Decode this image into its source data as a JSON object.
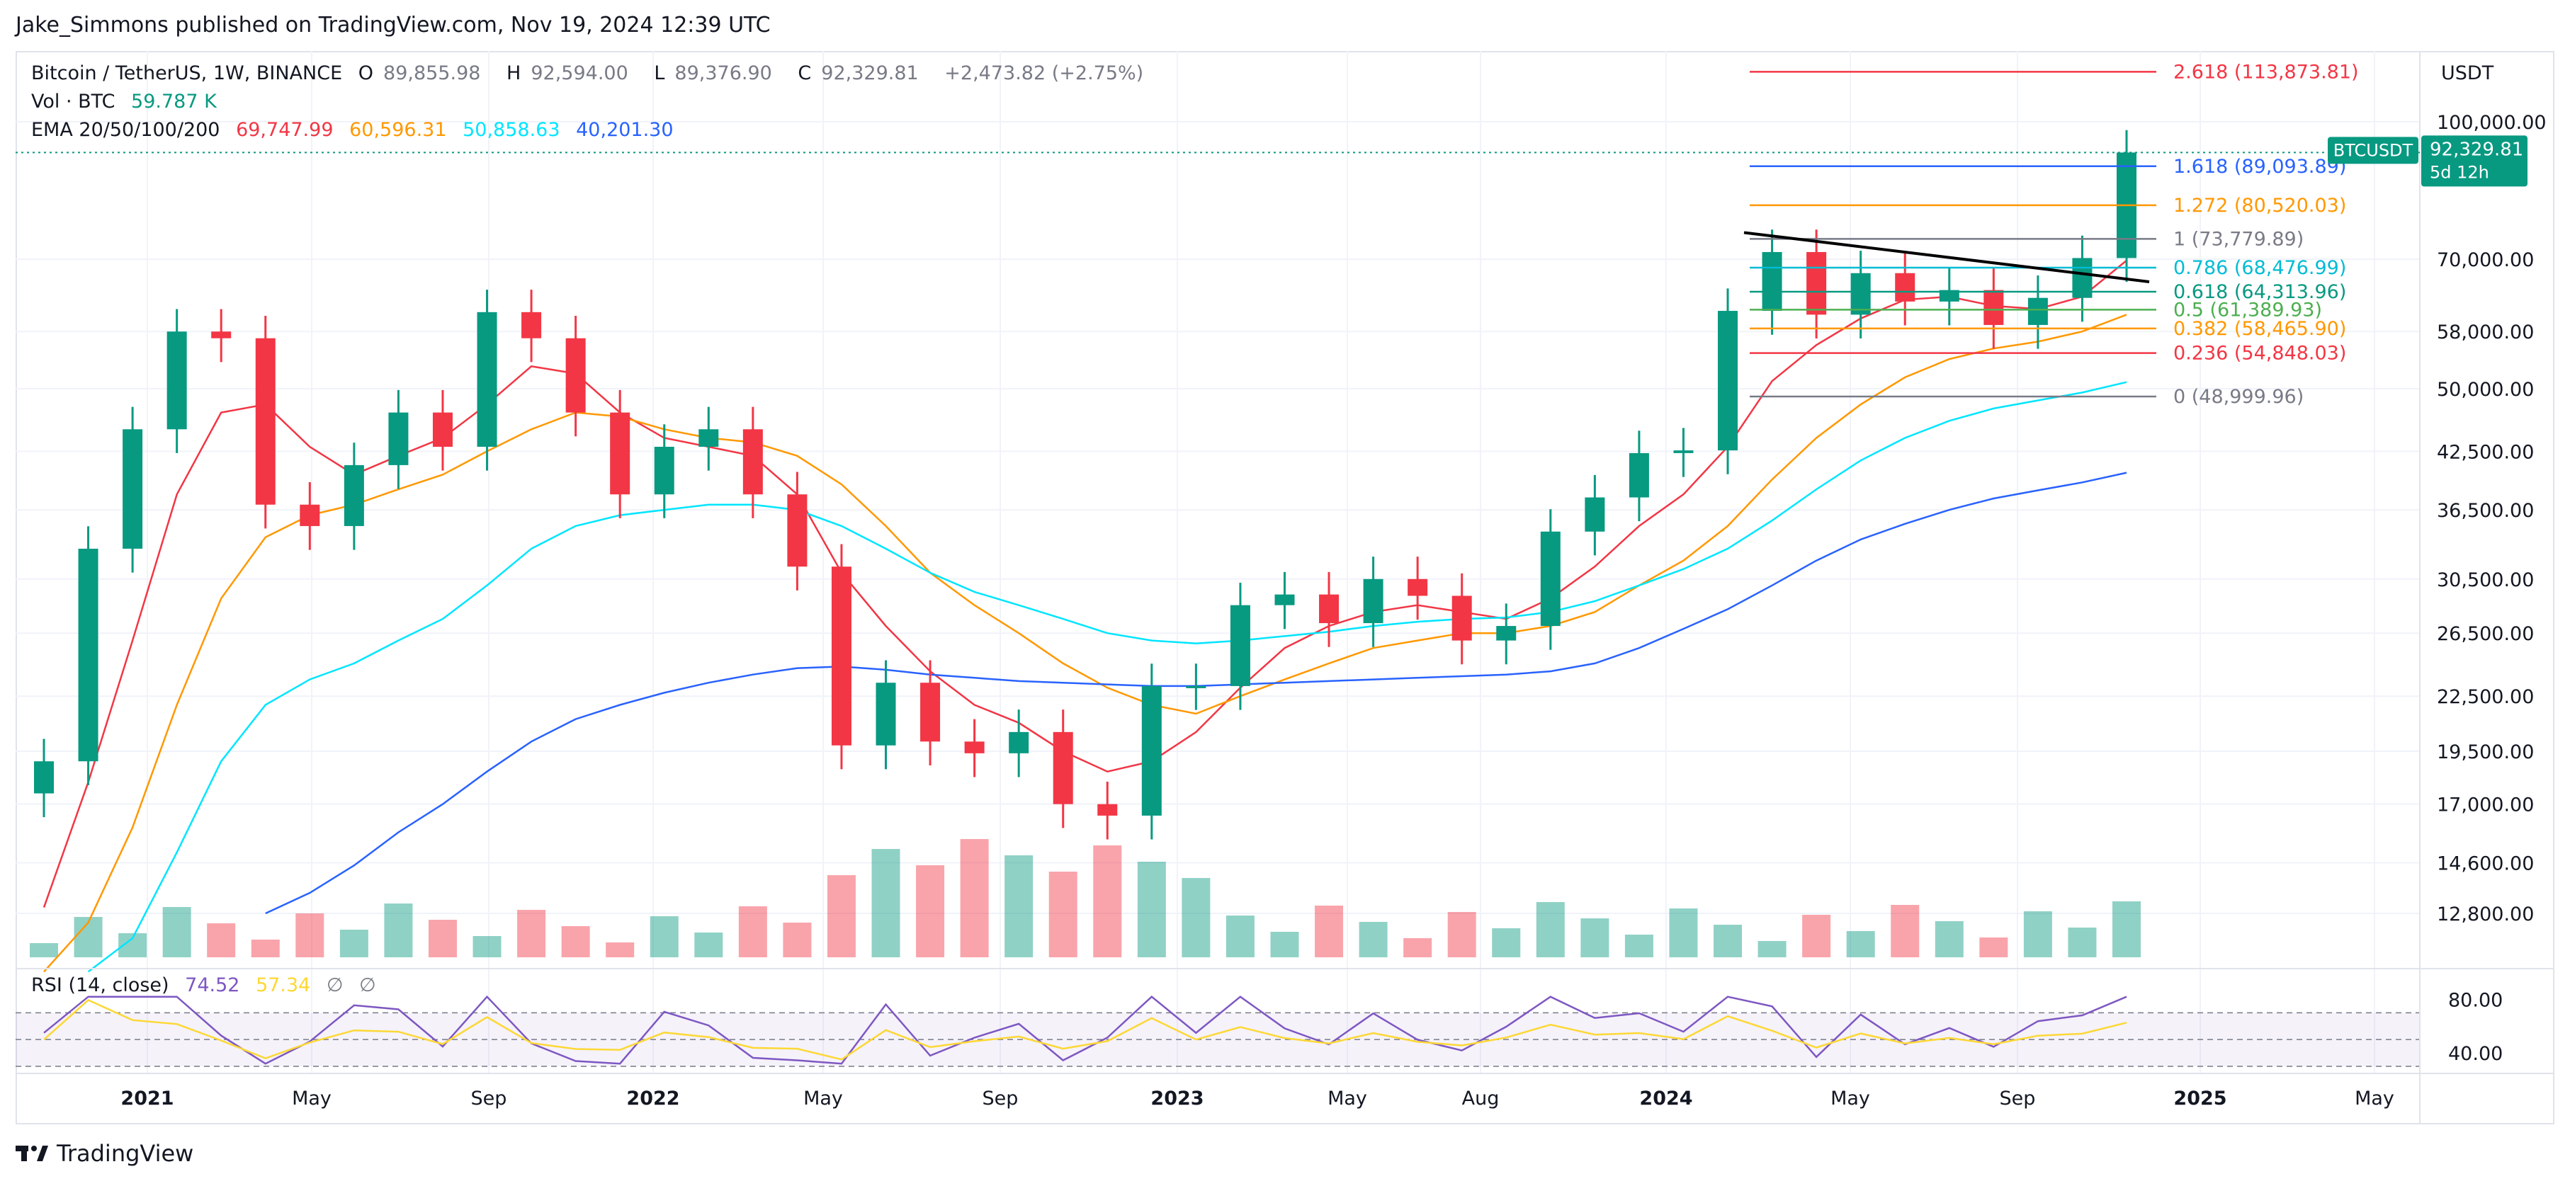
{
  "author_line": "Jake_Simmons published on TradingView.com, Nov 19, 2024 12:39 UTC",
  "footer": {
    "brand": "TradingView",
    "logo_icon": "tradingview-logo-icon"
  },
  "legend": {
    "symbol": "Bitcoin / TetherUS, 1W, BINANCE",
    "open_label": "O",
    "open": "89,855.98",
    "high_label": "H",
    "high": "92,594.00",
    "low_label": "L",
    "low": "89,376.90",
    "close_label": "C",
    "close": "92,329.81",
    "change": "+2,473.82 (+2.75%)",
    "vol_label": "Vol · BTC",
    "vol_value": "59.787 K",
    "ema_label": "EMA 20/50/100/200",
    "ema_values": [
      "69,747.99",
      "60,596.31",
      "50,858.63",
      "40,201.30"
    ],
    "ema_colors": [
      "#f23645",
      "#ff9800",
      "#00e5ff",
      "#2962ff"
    ],
    "rsi_label": "RSI (14, close)",
    "rsi_value": "74.52",
    "rsi_ma": "57.34",
    "rsi_na1": "∅",
    "rsi_na2": "∅"
  },
  "price_axis": {
    "currency": "USDT",
    "ticks": [
      "100,000.00",
      "70,000.00",
      "58,000.00",
      "50,000.00",
      "42,500.00",
      "36,500.00",
      "30,500.00",
      "26,500.00",
      "22,500.00",
      "19,500.00",
      "17,000.00",
      "14,600.00",
      "12,800.00"
    ],
    "last_price_symbol": "BTCUSDT",
    "last_price": "92,329.81",
    "countdown": "5d 12h"
  },
  "rsi_axis": {
    "ticks": [
      "80.00",
      "40.00"
    ]
  },
  "time_axis": {
    "ticks": [
      "2021",
      "May",
      "Sep",
      "2022",
      "May",
      "Sep",
      "2023",
      "May",
      "Aug",
      "2024",
      "May",
      "Sep",
      "2025",
      "May"
    ]
  },
  "fibonacci": [
    {
      "label": "2.618 (113,873.81)",
      "color": "#f23645"
    },
    {
      "label": "1.618 (89,093.89)",
      "color": "#2962ff"
    },
    {
      "label": "1.272 (80,520.03)",
      "color": "#ff9800"
    },
    {
      "label": "1 (73,779.89)",
      "color": "#787b86"
    },
    {
      "label": "0.786 (68,476.99)",
      "color": "#00bcd4"
    },
    {
      "label": "0.618 (64,313.96)",
      "color": "#089981"
    },
    {
      "label": "0.5 (61,389.93)",
      "color": "#4caf50"
    },
    {
      "label": "0.382 (58,465.90)",
      "color": "#ff9800"
    },
    {
      "label": "0.236 (54,848.03)",
      "color": "#f23645"
    },
    {
      "label": "0 (48,999.96)",
      "color": "#787b86"
    }
  ],
  "chart_data": {
    "type": "candlestick",
    "title": "Bitcoin / TetherUS, 1W, BINANCE",
    "y_scale": "log",
    "ylim": [
      11000,
      125000
    ],
    "series": [
      {
        "name": "BTCUSDT",
        "dates": [
          "2020-12",
          "2021-01",
          "2021-02",
          "2021-03",
          "2021-04",
          "2021-05",
          "2021-06",
          "2021-07",
          "2021-08",
          "2021-09",
          "2021-10",
          "2021-11",
          "2021-12",
          "2022-01",
          "2022-02",
          "2022-03",
          "2022-04",
          "2022-05",
          "2022-06",
          "2022-07",
          "2022-08",
          "2022-09",
          "2022-10",
          "2022-11",
          "2022-12",
          "2023-01",
          "2023-02",
          "2023-03",
          "2023-04",
          "2023-05",
          "2023-06",
          "2023-07",
          "2023-08",
          "2023-09",
          "2023-10",
          "2023-11",
          "2023-12",
          "2024-01",
          "2024-02",
          "2024-03",
          "2024-04",
          "2024-05",
          "2024-06",
          "2024-07",
          "2024-08",
          "2024-09",
          "2024-10",
          "2024-11"
        ],
        "close": [
          19000,
          33000,
          45000,
          58000,
          57000,
          37000,
          35000,
          41000,
          47000,
          43000,
          61000,
          57000,
          47000,
          38000,
          43000,
          45000,
          38000,
          31500,
          19800,
          23300,
          20000,
          19400,
          20500,
          17000,
          16500,
          23100,
          23100,
          28500,
          29300,
          27200,
          30500,
          29200,
          26000,
          27000,
          34500,
          37700,
          42300,
          42600,
          61200,
          71300,
          60600,
          67500,
          62700,
          64600,
          59000,
          63300,
          70200,
          92330
        ]
      },
      {
        "name": "EMA 20",
        "values": [
          13000,
          18000,
          26000,
          38000,
          47000,
          48000,
          43000,
          40000,
          42000,
          44000,
          48000,
          53000,
          52000,
          47000,
          44000,
          43000,
          42000,
          38000,
          31000,
          27000,
          24000,
          22000,
          21000,
          19500,
          18500,
          19000,
          20500,
          23000,
          25500,
          27000,
          28000,
          28500,
          28000,
          27500,
          29000,
          31500,
          35000,
          38000,
          43000,
          51000,
          56000,
          60000,
          63000,
          63500,
          62000,
          61500,
          63500,
          69748
        ]
      },
      {
        "name": "EMA 50",
        "values": [
          11000,
          12500,
          16000,
          22000,
          29000,
          34000,
          36000,
          37000,
          38500,
          40000,
          42500,
          45000,
          47000,
          46500,
          45000,
          44000,
          43500,
          42000,
          39000,
          35000,
          31000,
          28500,
          26500,
          24500,
          23000,
          22000,
          21500,
          22500,
          23500,
          24500,
          25500,
          26000,
          26500,
          26500,
          27000,
          28000,
          30000,
          32000,
          35000,
          39500,
          44000,
          48000,
          51500,
          54000,
          55500,
          56500,
          58000,
          60596
        ]
      },
      {
        "name": "EMA 100",
        "values": [
          null,
          11000,
          12000,
          15000,
          19000,
          22000,
          23500,
          24500,
          26000,
          27500,
          30000,
          33000,
          35000,
          36000,
          36500,
          37000,
          37000,
          36500,
          35000,
          33000,
          31000,
          29500,
          28500,
          27500,
          26500,
          26000,
          25800,
          26000,
          26300,
          26600,
          27000,
          27300,
          27500,
          27600,
          28000,
          28800,
          30000,
          31300,
          33000,
          35500,
          38500,
          41500,
          44000,
          46000,
          47500,
          48500,
          49500,
          50859
        ]
      },
      {
        "name": "EMA 200",
        "values": [
          null,
          null,
          null,
          null,
          null,
          12800,
          13500,
          14500,
          15800,
          17000,
          18500,
          20000,
          21200,
          22000,
          22700,
          23300,
          23800,
          24200,
          24300,
          24100,
          23800,
          23600,
          23400,
          23300,
          23200,
          23100,
          23100,
          23200,
          23300,
          23400,
          23500,
          23600,
          23700,
          23800,
          24000,
          24500,
          25500,
          26800,
          28200,
          30000,
          32000,
          33800,
          35200,
          36500,
          37600,
          38400,
          39200,
          40201
        ]
      }
    ]
  }
}
